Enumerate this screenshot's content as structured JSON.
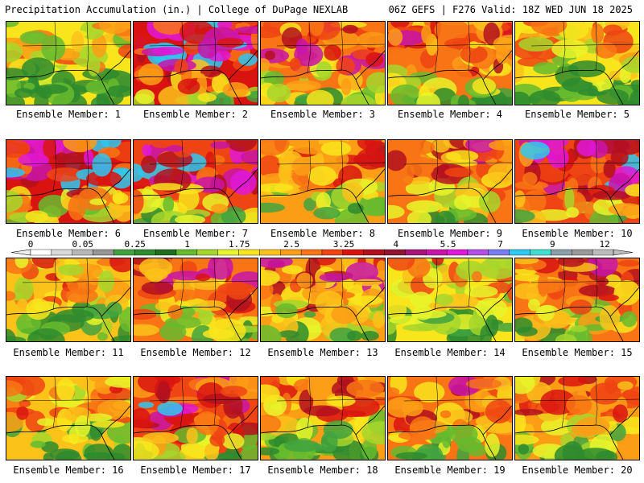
{
  "header": {
    "left": "Precipitation Accumulation (in.) | College of DuPage NEXLAB",
    "right": "06Z GEFS | F276 Valid: 18Z WED JUN 18 2025"
  },
  "colorbar": {
    "labels": [
      "0",
      "0.05",
      "0.25",
      "1",
      "1.75",
      "2.5",
      "3.25",
      "4",
      "5.5",
      "7",
      "9",
      "12"
    ],
    "colors": [
      "#ffffff",
      "#d9d9d9",
      "#b8b8b8",
      "#969696",
      "#41a33f",
      "#2e8b2e",
      "#1f6f1f",
      "#66bb2e",
      "#a6d62c",
      "#e7f52a",
      "#f9e51c",
      "#fbc21a",
      "#fb9e16",
      "#f87414",
      "#ef4413",
      "#d91410",
      "#b3101e",
      "#901533",
      "#a8127b",
      "#c814a9",
      "#e018d8",
      "#b44fe6",
      "#7a7df2",
      "#2ec8f0",
      "#40e0d0",
      "#8aa0a8",
      "#9a9a9a",
      "#bdbdbd"
    ]
  },
  "panels": [
    {
      "label": "Ensemble Member: 1",
      "wetness": 0.4
    },
    {
      "label": "Ensemble Member: 2",
      "wetness": 0.78
    },
    {
      "label": "Ensemble Member: 3",
      "wetness": 0.62
    },
    {
      "label": "Ensemble Member: 4",
      "wetness": 0.6
    },
    {
      "label": "Ensemble Member: 5",
      "wetness": 0.42
    },
    {
      "label": "Ensemble Member: 6",
      "wetness": 0.75
    },
    {
      "label": "Ensemble Member: 7",
      "wetness": 0.72
    },
    {
      "label": "Ensemble Member: 8",
      "wetness": 0.55
    },
    {
      "label": "Ensemble Member: 9",
      "wetness": 0.6
    },
    {
      "label": "Ensemble Member: 10",
      "wetness": 0.74
    },
    {
      "label": "Ensemble Member: 11",
      "wetness": 0.45
    },
    {
      "label": "Ensemble Member: 12",
      "wetness": 0.62
    },
    {
      "label": "Ensemble Member: 13",
      "wetness": 0.58
    },
    {
      "label": "Ensemble Member: 14",
      "wetness": 0.42
    },
    {
      "label": "Ensemble Member: 15",
      "wetness": 0.6
    },
    {
      "label": "Ensemble Member: 16",
      "wetness": 0.45
    },
    {
      "label": "Ensemble Member: 17",
      "wetness": 0.72
    },
    {
      "label": "Ensemble Member: 18",
      "wetness": 0.55
    },
    {
      "label": "Ensemble Member: 19",
      "wetness": 0.6
    },
    {
      "label": "Ensemble Member: 20",
      "wetness": 0.55
    }
  ]
}
